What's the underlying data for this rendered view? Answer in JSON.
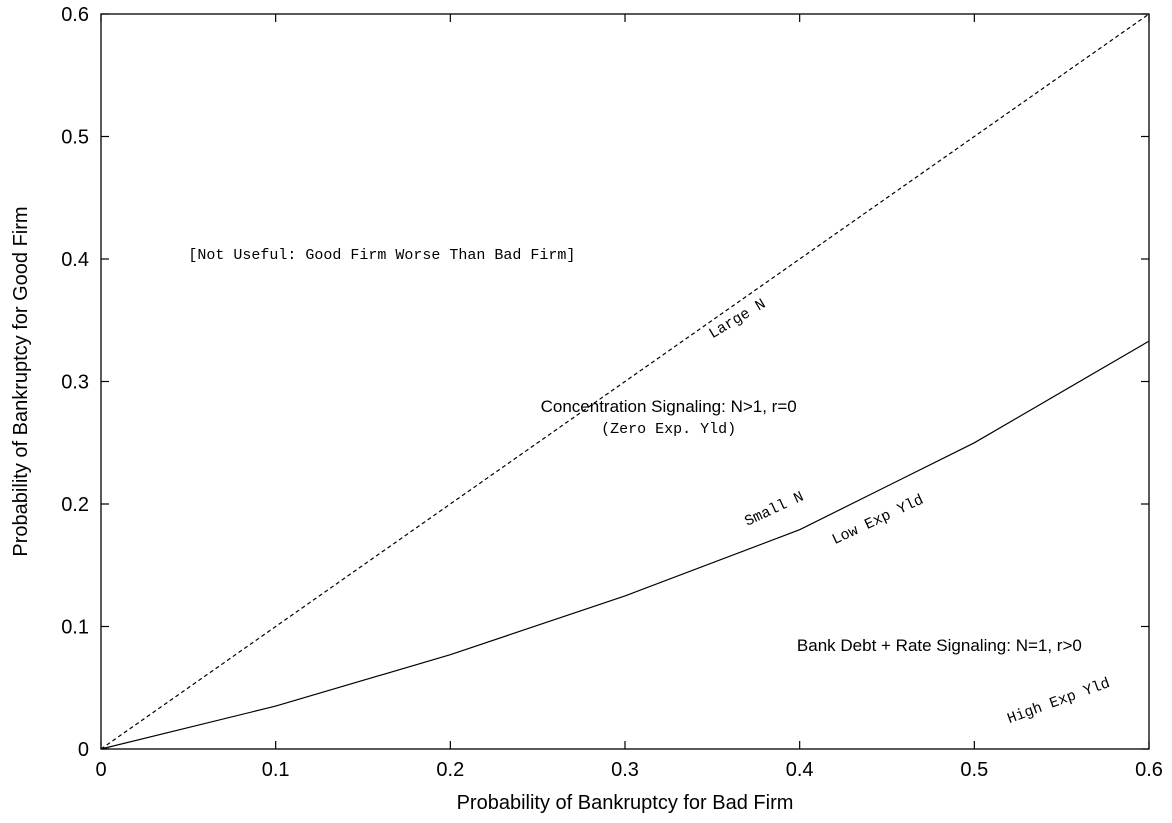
{
  "chart_data": {
    "type": "line",
    "xlabel": "Probability of Bankruptcy for Bad Firm",
    "ylabel": "Probability of Bankruptcy for Good Firm",
    "xlim": [
      0,
      0.6
    ],
    "ylim": [
      0,
      0.6
    ],
    "x_ticks": [
      "0",
      "0.1",
      "0.2",
      "0.3",
      "0.4",
      "0.5",
      "0.6"
    ],
    "y_ticks": [
      "0",
      "0.1",
      "0.2",
      "0.3",
      "0.4",
      "0.5",
      "0.6"
    ],
    "grid": false,
    "series": [
      {
        "style": "dashed",
        "x": [
          0,
          0.1,
          0.2,
          0.3,
          0.4,
          0.5,
          0.6
        ],
        "y": [
          0,
          0.1,
          0.2,
          0.3,
          0.4,
          0.5,
          0.6
        ]
      },
      {
        "style": "solid",
        "x": [
          0,
          0.1,
          0.2,
          0.3,
          0.4,
          0.5,
          0.6
        ],
        "y": [
          0,
          0.035,
          0.077,
          0.125,
          0.179,
          0.25,
          0.333
        ]
      }
    ],
    "annotations": [
      {
        "text": "[Not Useful: Good Firm Worse Than Bad Firm]",
        "x": 0.05,
        "y": 0.4,
        "font": "mono",
        "rotate": 0,
        "anchor": "start"
      },
      {
        "text": "Large N",
        "x": 0.35,
        "y": 0.335,
        "font": "mono",
        "rotate": -31,
        "anchor": "start"
      },
      {
        "text": "Concentration Signaling: N>1, r=0",
        "x": 0.325,
        "y": 0.275,
        "font": "sans",
        "rotate": 0,
        "anchor": "middle"
      },
      {
        "text": "(Zero Exp. Yld)",
        "x": 0.325,
        "y": 0.258,
        "font": "mono",
        "rotate": 0,
        "anchor": "middle"
      },
      {
        "text": "Small N",
        "x": 0.37,
        "y": 0.182,
        "font": "mono",
        "rotate": -25,
        "anchor": "start"
      },
      {
        "text": "Low Exp Yld",
        "x": 0.42,
        "y": 0.167,
        "font": "mono",
        "rotate": -25,
        "anchor": "start"
      },
      {
        "text": "Bank Debt + Rate Signaling: N=1, r>0",
        "x": 0.48,
        "y": 0.08,
        "font": "sans",
        "rotate": 0,
        "anchor": "middle"
      },
      {
        "text": "High Exp Yld",
        "x": 0.52,
        "y": 0.021,
        "font": "mono",
        "rotate": -20,
        "anchor": "start"
      }
    ]
  }
}
